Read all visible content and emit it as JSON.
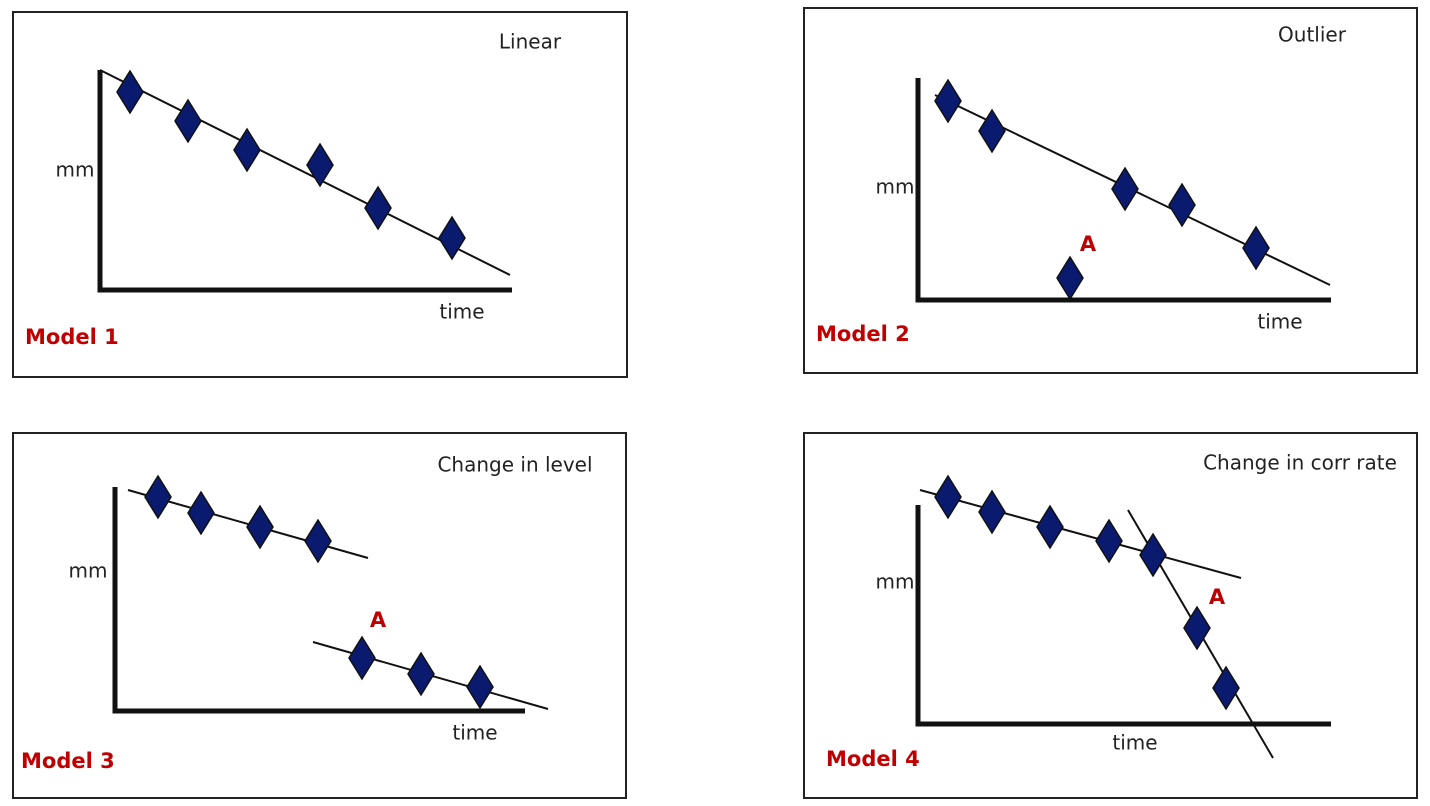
{
  "panels": [
    {
      "title": "Linear",
      "label": "Model 1",
      "y_label": "mm",
      "x_label": "time"
    },
    {
      "title": "Outlier",
      "label": "Model 2",
      "y_label": "mm",
      "x_label": "time",
      "annotation": "A"
    },
    {
      "title": "Change in level",
      "label": "Model 3",
      "y_label": "mm",
      "x_label": "time",
      "annotation": "A"
    },
    {
      "title": "Change in corr rate",
      "label": "Model 4",
      "y_label": "mm",
      "x_label": "time",
      "annotation": "A"
    }
  ]
}
